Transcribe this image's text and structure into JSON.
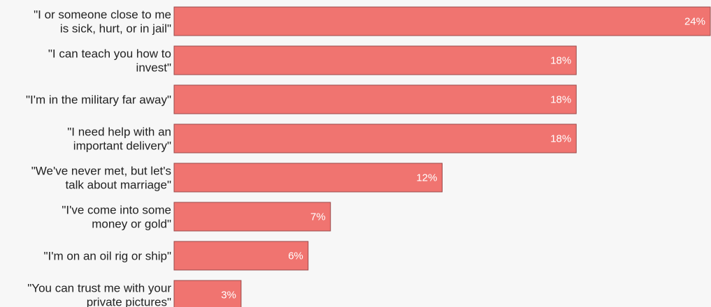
{
  "chart_data": {
    "type": "bar",
    "orientation": "horizontal",
    "categories": [
      [
        "\"I or someone close to me",
        "is sick, hurt, or in jail\""
      ],
      [
        "\"I can teach you how to",
        "invest\""
      ],
      [
        "\"I'm in the military far away\""
      ],
      [
        "\"I need help with an",
        "important delivery\""
      ],
      [
        "\"We've never met, but let's",
        "talk about marriage\""
      ],
      [
        "\"I've come into some",
        "money or gold\""
      ],
      [
        "\"I'm on an oil rig or ship\""
      ],
      [
        "\"You can trust me with your",
        "private pictures\""
      ]
    ],
    "values": [
      24,
      18,
      18,
      18,
      12,
      7,
      6,
      3
    ],
    "value_labels": [
      "24%",
      "18%",
      "18%",
      "18%",
      "12%",
      "7%",
      "6%",
      "3%"
    ],
    "unit": "%",
    "xlim": [
      0,
      24
    ],
    "grid": false,
    "legend": "none",
    "bar_color": "#f07470",
    "background": "#f7f7f7"
  }
}
